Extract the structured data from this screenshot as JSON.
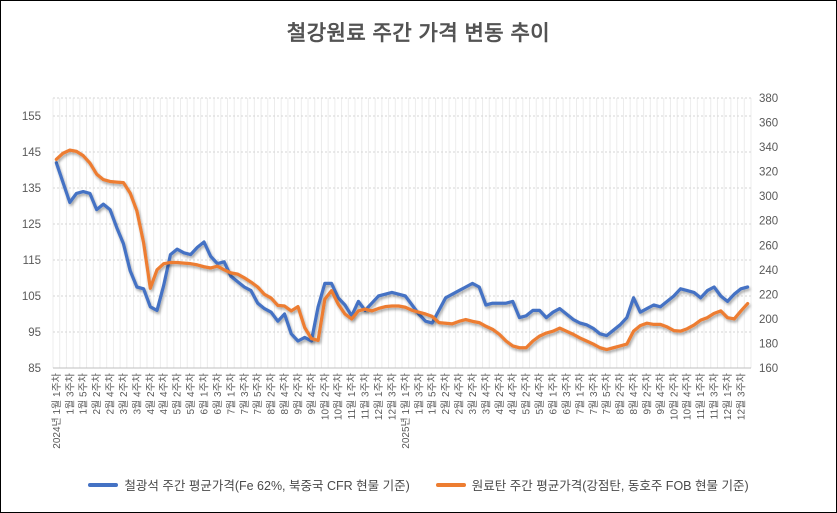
{
  "title": "철강원료 주간 가격 변동 추이",
  "chart_data": {
    "type": "line",
    "title": "철강원료 주간 가격 변동 추이",
    "legend_position": "bottom",
    "grid": {
      "horizontal": "dashed",
      "vertical": "weekly-stripes"
    },
    "x_axis": {
      "weeks_total": 104,
      "label_every_n_weeks": 2,
      "labels": [
        "2024년 1월 1주차",
        "1월 3주차",
        "1월 5주차",
        "2월 2주차",
        "2월 4주차",
        "3월 2주차",
        "3월 4주차",
        "4월 2주차",
        "4월 4주차",
        "5월 2주차",
        "5월 4주차",
        "6월 1주차",
        "6월 3주차",
        "7월 1주차",
        "7월 3주차",
        "7월 5주차",
        "8월 2주차",
        "8월 4주차",
        "9월 2주차",
        "9월 4주차",
        "10월 2주차",
        "10월 4주차",
        "11월 1주차",
        "11월 3주차",
        "12월 1주차",
        "12월 3주차",
        "2025년 1월 1주차",
        "1월 3주차",
        "1월 5주차",
        "2월 2주차",
        "2월 4주차",
        "3월 2주차",
        "3월 4주차",
        "4월 2주차",
        "4월 4주차",
        "5월 2주차",
        "5월 4주차",
        "6월 1주차",
        "6월 3주차",
        "7월 1주차",
        "7월 3주차",
        "7월 5주차",
        "8월 2주차",
        "8월 4주차",
        "9월 2주차",
        "9월 4주차",
        "10월 2주차",
        "10월 4주차",
        "11월 1주차",
        "11월 3주차",
        "12월 1주차",
        "12월 3주차"
      ]
    },
    "y_left": {
      "min": 85,
      "max": 160,
      "tick_step": 10,
      "ticks": [
        155,
        145,
        135,
        125,
        115,
        105,
        95,
        85
      ]
    },
    "y_right": {
      "min": 160,
      "max": 380,
      "tick_step": 20,
      "ticks": [
        380,
        360,
        340,
        320,
        300,
        280,
        260,
        240,
        220,
        200,
        180,
        160
      ]
    },
    "series": [
      {
        "name": "철광석 주간 평균가격(Fe 62%, 북중국 CFR 현물 기준)",
        "axis": "left",
        "color": "#4472C4",
        "values": [
          142,
          136.5,
          131,
          133.5,
          134,
          133.5,
          129,
          130.5,
          129,
          124,
          119.5,
          112,
          107.5,
          107,
          102,
          101,
          108,
          116.5,
          118,
          117,
          116.5,
          118.5,
          120,
          116,
          114,
          114.5,
          110.5,
          109,
          107.5,
          106.5,
          103,
          101.5,
          100.5,
          98,
          100,
          94.5,
          92.5,
          93.5,
          92.5,
          102,
          108.5,
          108.5,
          104.5,
          102.5,
          99.5,
          103.5,
          101,
          103,
          105,
          105.5,
          106,
          105.5,
          105,
          102.5,
          100,
          98,
          97.5,
          101,
          104.5,
          105.5,
          106.5,
          107.5,
          108.5,
          107.5,
          102.5,
          103,
          103,
          103,
          103.5,
          99,
          99.5,
          101,
          101,
          99,
          100.5,
          101.5,
          100,
          98.5,
          97.5,
          97,
          96,
          94.5,
          94,
          95.5,
          97,
          99,
          104.5,
          100.5,
          101.5,
          102.5,
          102,
          103.5,
          105,
          107,
          106.5,
          106,
          104.5,
          106.5,
          107.5,
          105,
          103.5,
          105.5,
          107,
          107.5
        ]
      },
      {
        "name": "원료탄 주간 평균가격(강점탄, 동호주 FOB 현물 기준)",
        "axis": "right",
        "color": "#ED7D31",
        "values": [
          330,
          335,
          337.5,
          336.5,
          333,
          327,
          318,
          313.5,
          312,
          311.5,
          311,
          302.5,
          288,
          262,
          225,
          240,
          245,
          246,
          246,
          245.5,
          245,
          244,
          242.5,
          241.5,
          243,
          240,
          237.5,
          236.5,
          233.5,
          230,
          226,
          220,
          217,
          211,
          210.5,
          206.5,
          210,
          193,
          184,
          182.5,
          216,
          223,
          212,
          204,
          200,
          206.5,
          208,
          206.5,
          208.5,
          210,
          210.5,
          210.5,
          209.5,
          207,
          205.5,
          204,
          202,
          197,
          196.5,
          196,
          198,
          199.5,
          198,
          197,
          194,
          191.5,
          187.5,
          182,
          178,
          176.5,
          176.5,
          182,
          186,
          188.5,
          190,
          192.5,
          190,
          187.5,
          184.5,
          182,
          179.5,
          176.5,
          175,
          176.5,
          178,
          179.5,
          190,
          194.5,
          196.5,
          195.5,
          195.5,
          193.5,
          190.5,
          190,
          192,
          195,
          199,
          201,
          204.5,
          206.5,
          201,
          200,
          206.5,
          212.5
        ]
      }
    ]
  }
}
